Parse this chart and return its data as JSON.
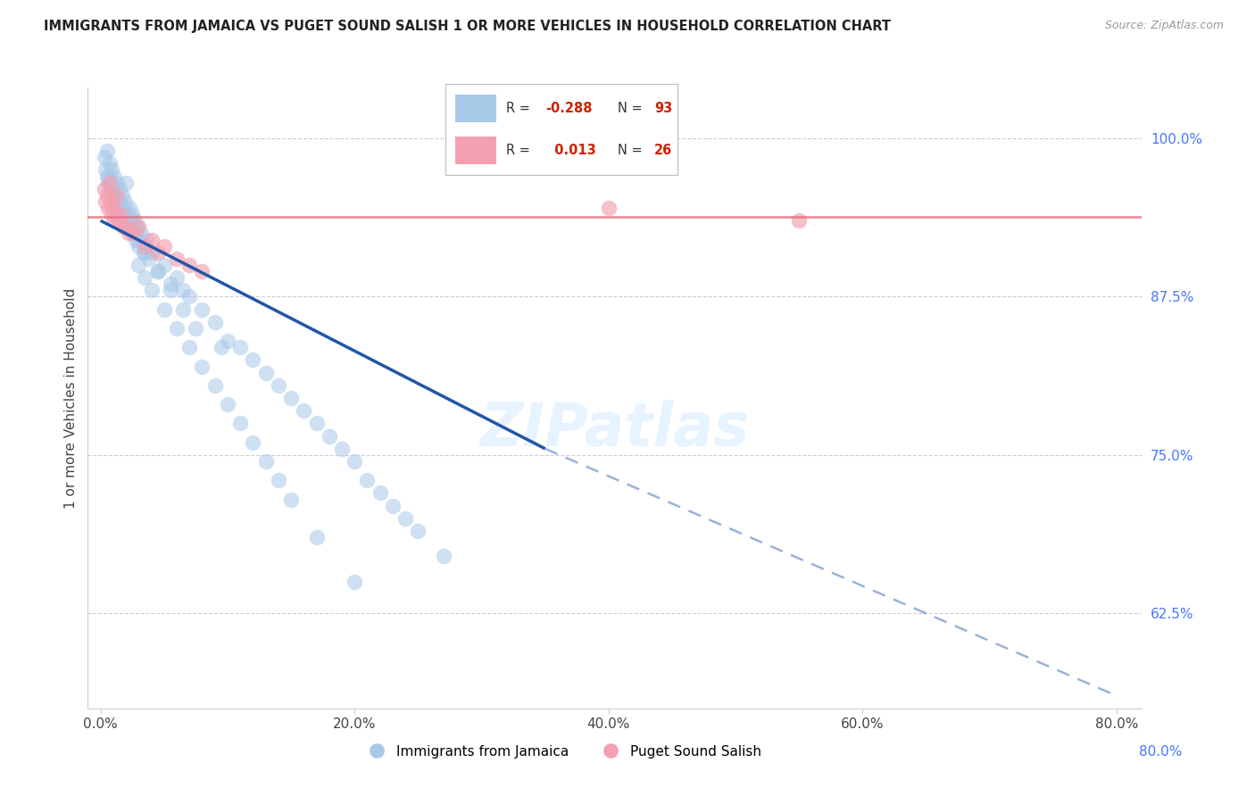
{
  "title": "IMMIGRANTS FROM JAMAICA VS PUGET SOUND SALISH 1 OR MORE VEHICLES IN HOUSEHOLD CORRELATION CHART",
  "source": "Source: ZipAtlas.com",
  "ylabel": "1 or more Vehicles in Household",
  "legend_label_1": "Immigrants from Jamaica",
  "legend_label_2": "Puget Sound Salish",
  "R1": -0.288,
  "N1": 93,
  "R2": 0.013,
  "N2": 26,
  "color1": "#a8c8e8",
  "color2": "#f4a0b0",
  "trendline1_color": "#2255aa",
  "trendline2_color": "#e07080",
  "xlim": [
    -1.0,
    82.0
  ],
  "ylim": [
    55.0,
    104.0
  ],
  "xticklabels": [
    "0.0%",
    "20.0%",
    "40.0%",
    "60.0%",
    "80.0%"
  ],
  "xticks": [
    0.0,
    20.0,
    40.0,
    60.0,
    80.0
  ],
  "right_yticks": [
    100.0,
    87.5,
    75.0,
    62.5
  ],
  "right_yticklabels": [
    "100.0%",
    "87.5%",
    "75.0%",
    "62.5%"
  ],
  "blue_x": [
    0.3,
    0.4,
    0.5,
    0.6,
    0.7,
    0.8,
    0.9,
    1.0,
    1.1,
    1.2,
    1.3,
    1.4,
    1.5,
    1.6,
    1.7,
    1.8,
    1.9,
    2.0,
    2.1,
    2.2,
    2.3,
    2.4,
    2.5,
    2.6,
    2.7,
    2.8,
    2.9,
    3.0,
    3.2,
    3.4,
    3.6,
    3.8,
    4.0,
    4.5,
    5.0,
    5.5,
    6.0,
    6.5,
    7.0,
    8.0,
    9.0,
    10.0,
    11.0,
    12.0,
    13.0,
    14.0,
    15.0,
    16.0,
    17.0,
    18.0,
    19.0,
    20.0,
    21.0,
    22.0,
    23.0,
    24.0,
    25.0,
    27.0,
    3.0,
    3.5,
    4.0,
    5.0,
    6.0,
    7.0,
    8.0,
    9.0,
    10.0,
    11.0,
    12.0,
    13.0,
    14.0,
    15.0,
    17.0,
    20.0,
    1.0,
    2.0,
    1.5,
    0.8,
    1.2,
    2.5,
    3.0,
    0.5,
    0.6,
    1.8,
    2.2,
    2.8,
    3.5,
    4.5,
    5.5,
    6.5,
    7.5,
    9.5
  ],
  "blue_y": [
    98.5,
    97.5,
    99.0,
    97.0,
    98.0,
    96.5,
    97.5,
    96.0,
    97.0,
    95.5,
    96.5,
    95.0,
    96.0,
    94.5,
    95.5,
    94.0,
    95.0,
    96.5,
    94.0,
    93.5,
    94.5,
    93.0,
    94.0,
    92.5,
    93.5,
    92.0,
    93.0,
    91.5,
    92.5,
    91.0,
    92.0,
    90.5,
    91.0,
    89.5,
    90.0,
    88.5,
    89.0,
    88.0,
    87.5,
    86.5,
    85.5,
    84.0,
    83.5,
    82.5,
    81.5,
    80.5,
    79.5,
    78.5,
    77.5,
    76.5,
    75.5,
    74.5,
    73.0,
    72.0,
    71.0,
    70.0,
    69.0,
    67.0,
    90.0,
    89.0,
    88.0,
    86.5,
    85.0,
    83.5,
    82.0,
    80.5,
    79.0,
    77.5,
    76.0,
    74.5,
    73.0,
    71.5,
    68.5,
    65.0,
    94.5,
    93.0,
    95.0,
    96.0,
    94.0,
    93.5,
    92.0,
    97.0,
    96.5,
    94.5,
    93.0,
    92.5,
    91.0,
    89.5,
    88.0,
    86.5,
    85.0,
    83.5
  ],
  "pink_x": [
    0.3,
    0.4,
    0.5,
    0.6,
    0.7,
    0.8,
    1.0,
    1.2,
    1.4,
    1.6,
    2.0,
    2.5,
    3.0,
    4.0,
    5.0,
    7.0,
    0.9,
    1.1,
    1.8,
    2.2,
    3.5,
    4.5,
    6.0,
    8.0,
    40.0,
    55.0
  ],
  "pink_y": [
    96.0,
    95.0,
    95.5,
    94.5,
    96.5,
    95.0,
    94.5,
    95.5,
    93.5,
    94.0,
    93.0,
    92.5,
    93.0,
    92.0,
    91.5,
    90.0,
    94.0,
    93.5,
    93.0,
    92.5,
    91.5,
    91.0,
    90.5,
    89.5,
    94.5,
    93.5
  ],
  "trend1_x0": 0.0,
  "trend1_y0": 93.5,
  "trend1_x1": 35.0,
  "trend1_y1": 75.5,
  "trend1_dash_x1": 80.0,
  "trend1_dash_y1": 56.0,
  "trend2_y": 93.8
}
